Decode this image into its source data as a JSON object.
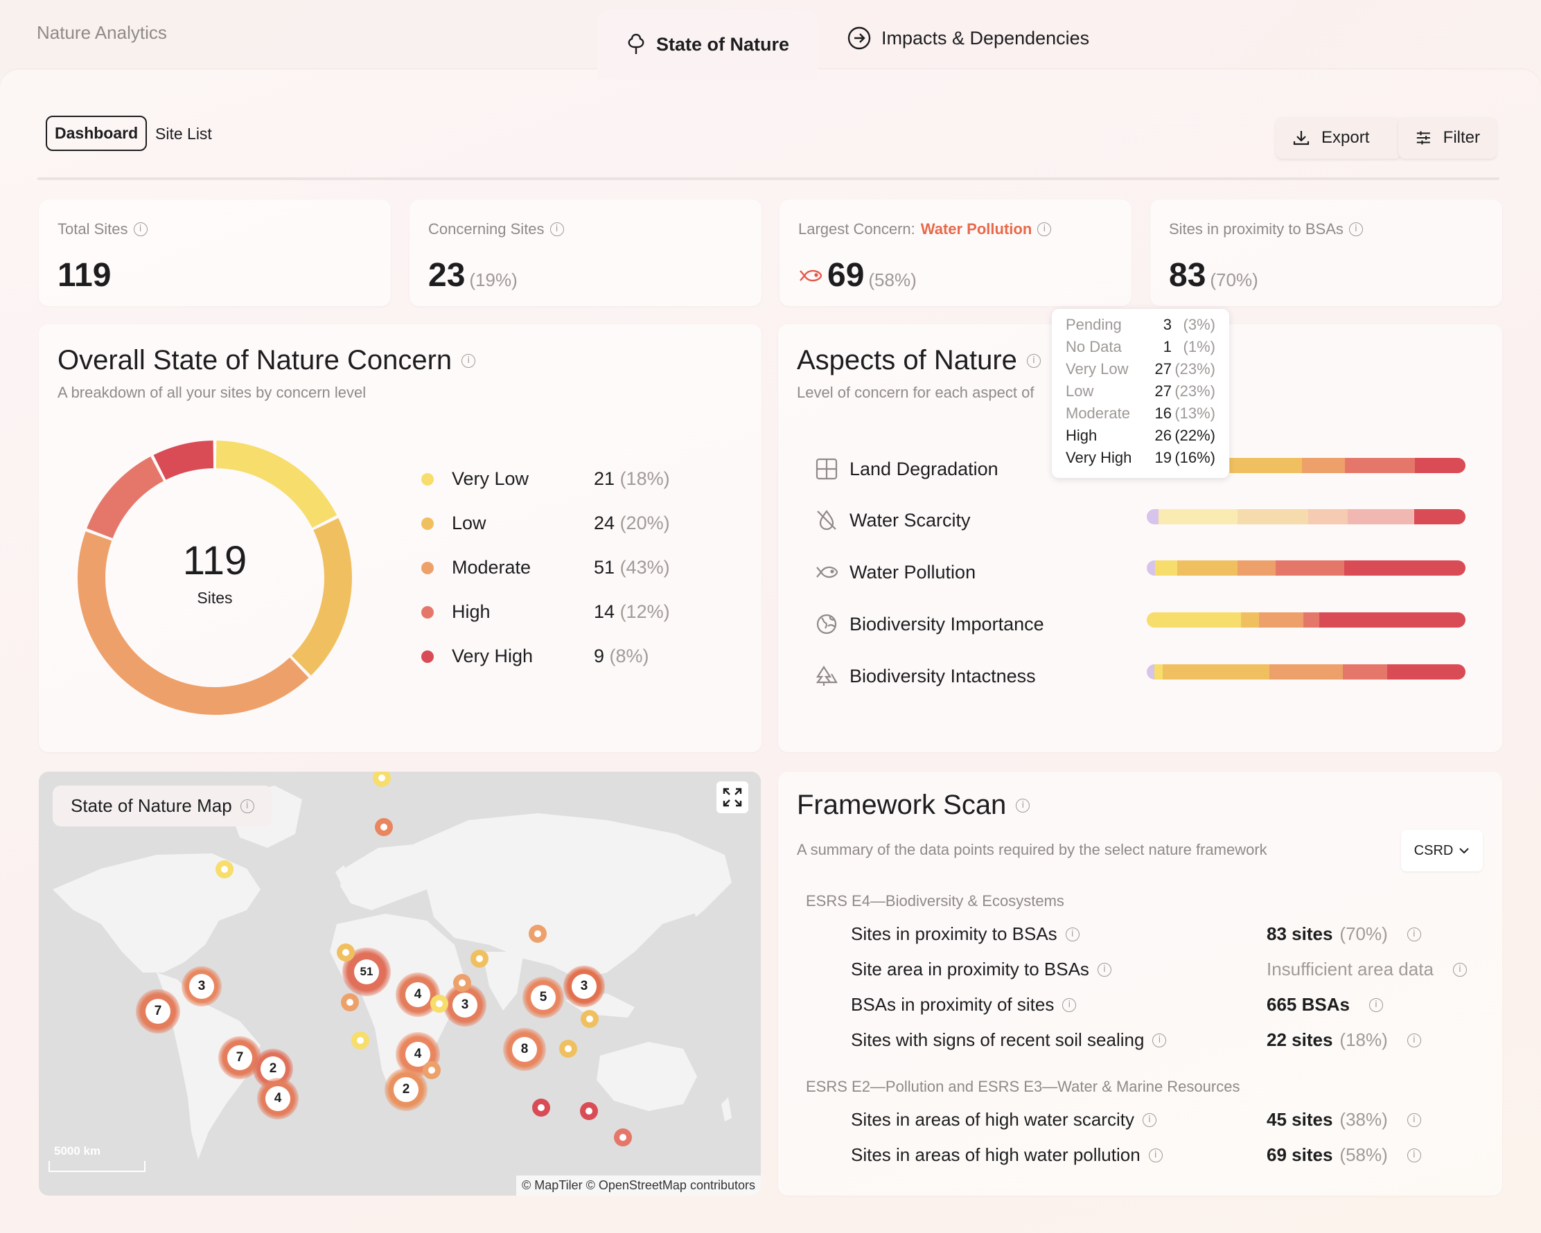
{
  "app": {
    "title": "Nature Analytics"
  },
  "tabs": [
    {
      "label": "State of Nature",
      "icon": "tree-icon",
      "active": true
    },
    {
      "label": "Impacts & Dependencies",
      "icon": "arrow-circle-icon",
      "active": false
    }
  ],
  "view_toggle": {
    "dashboard": "Dashboard",
    "site_list": "Site List"
  },
  "toolbar": {
    "export": "Export",
    "filter": "Filter"
  },
  "kpis": {
    "total_sites": {
      "label": "Total Sites",
      "value": "119"
    },
    "concerning_sites": {
      "label": "Concerning Sites",
      "value": "23",
      "pct": "(19%)"
    },
    "largest_concern": {
      "label": "Largest Concern:",
      "concern": "Water Pollution",
      "value": "69",
      "pct": "(58%)"
    },
    "bsa_proximity": {
      "label": "Sites in proximity to BSAs",
      "value": "83",
      "pct": "(70%)"
    }
  },
  "overall": {
    "title": "Overall State of Nature Concern",
    "subtitle": "A breakdown of all your sites by concern level",
    "center_value": "119",
    "center_label": "Sites",
    "legend": [
      {
        "label": "Very Low",
        "count": "21",
        "pct": "(18%)",
        "value": 21,
        "color": "#f7dd6b"
      },
      {
        "label": "Low",
        "count": "24",
        "pct": "(20%)",
        "value": 24,
        "color": "#f0c060"
      },
      {
        "label": "Moderate",
        "count": "51",
        "pct": "(43%)",
        "value": 51,
        "color": "#eda06a"
      },
      {
        "label": "High",
        "count": "14",
        "pct": "(12%)",
        "value": 14,
        "color": "#e5776a"
      },
      {
        "label": "Very High",
        "count": "9",
        "pct": "(8%)",
        "value": 9,
        "color": "#d94b55"
      }
    ]
  },
  "aspects": {
    "title": "Aspects of Nature",
    "subtitle": "Level of concern for each aspect of",
    "colors": {
      "pending": "#d7c4ea",
      "no_data": "#f0e4e8",
      "very_low": "#f7dd6b",
      "low": "#f0c060",
      "moderate": "#eda06a",
      "high": "#e5776a",
      "very_high": "#d94b55"
    },
    "items": [
      {
        "label": "Land Degradation",
        "icon": "grid-icon",
        "faded": false,
        "values": [
          3,
          1,
          27,
          27,
          16,
          26,
          19
        ]
      },
      {
        "label": "Water Scarcity",
        "icon": "water-drop-off-icon",
        "faded": true,
        "values": [
          3,
          0,
          20,
          18,
          10,
          17,
          13
        ]
      },
      {
        "label": "Water Pollution",
        "icon": "fish-icon",
        "faded": false,
        "values": [
          3,
          0,
          8,
          22,
          14,
          25,
          44
        ]
      },
      {
        "label": "Biodiversity Importance",
        "icon": "globe-leaf-icon",
        "faded": false,
        "values": [
          0,
          0,
          36,
          7,
          17,
          6,
          56
        ]
      },
      {
        "label": "Biodiversity Intactness",
        "icon": "tree-pine-icon",
        "faded": false,
        "values": [
          3,
          0,
          3,
          41,
          28,
          17,
          30
        ]
      }
    ],
    "tooltip": [
      {
        "label": "Pending",
        "count": "3",
        "pct": "(3%)"
      },
      {
        "label": "No Data",
        "count": "1",
        "pct": "(1%)"
      },
      {
        "label": "Very Low",
        "count": "27",
        "pct": "(23%)"
      },
      {
        "label": "Low",
        "count": "27",
        "pct": "(23%)"
      },
      {
        "label": "Moderate",
        "count": "16",
        "pct": "(13%)"
      },
      {
        "label": "High",
        "count": "26",
        "pct": "(22%)"
      },
      {
        "label": "Very High",
        "count": "19",
        "pct": "(16%)"
      }
    ]
  },
  "map": {
    "title": "State of Nature Map",
    "scale": "5000 km",
    "attribution": "© MapTiler © OpenStreetMap contributors",
    "clusters": [
      "3",
      "7",
      "51",
      "4",
      "3",
      "5",
      "3",
      "8",
      "4",
      "2",
      "7",
      "2",
      "4"
    ]
  },
  "framework": {
    "title": "Framework Scan",
    "subtitle": "A summary of the data points required by the select nature framework",
    "selected": "CSRD",
    "sections": [
      {
        "label": "ESRS E4—Biodiversity & Ecosystems",
        "rows": [
          {
            "label": "Sites in proximity to BSAs",
            "value": "83 sites",
            "pct": "(70%)"
          },
          {
            "label": "Site area in proximity to BSAs",
            "value": "",
            "note": "Insufficient area data"
          },
          {
            "label": "BSAs in proximity of sites",
            "value": "665 BSAs",
            "pct": ""
          },
          {
            "label": "Sites with signs of recent soil sealing",
            "value": "22 sites",
            "pct": "(18%)"
          }
        ]
      },
      {
        "label": "ESRS E2—Pollution and ESRS E3—Water & Marine Resources",
        "rows": [
          {
            "label": "Sites in areas of high water scarcity",
            "value": "45 sites",
            "pct": "(38%)"
          },
          {
            "label": "Sites in areas of high water pollution",
            "value": "69 sites",
            "pct": "(58%)"
          }
        ]
      }
    ]
  }
}
